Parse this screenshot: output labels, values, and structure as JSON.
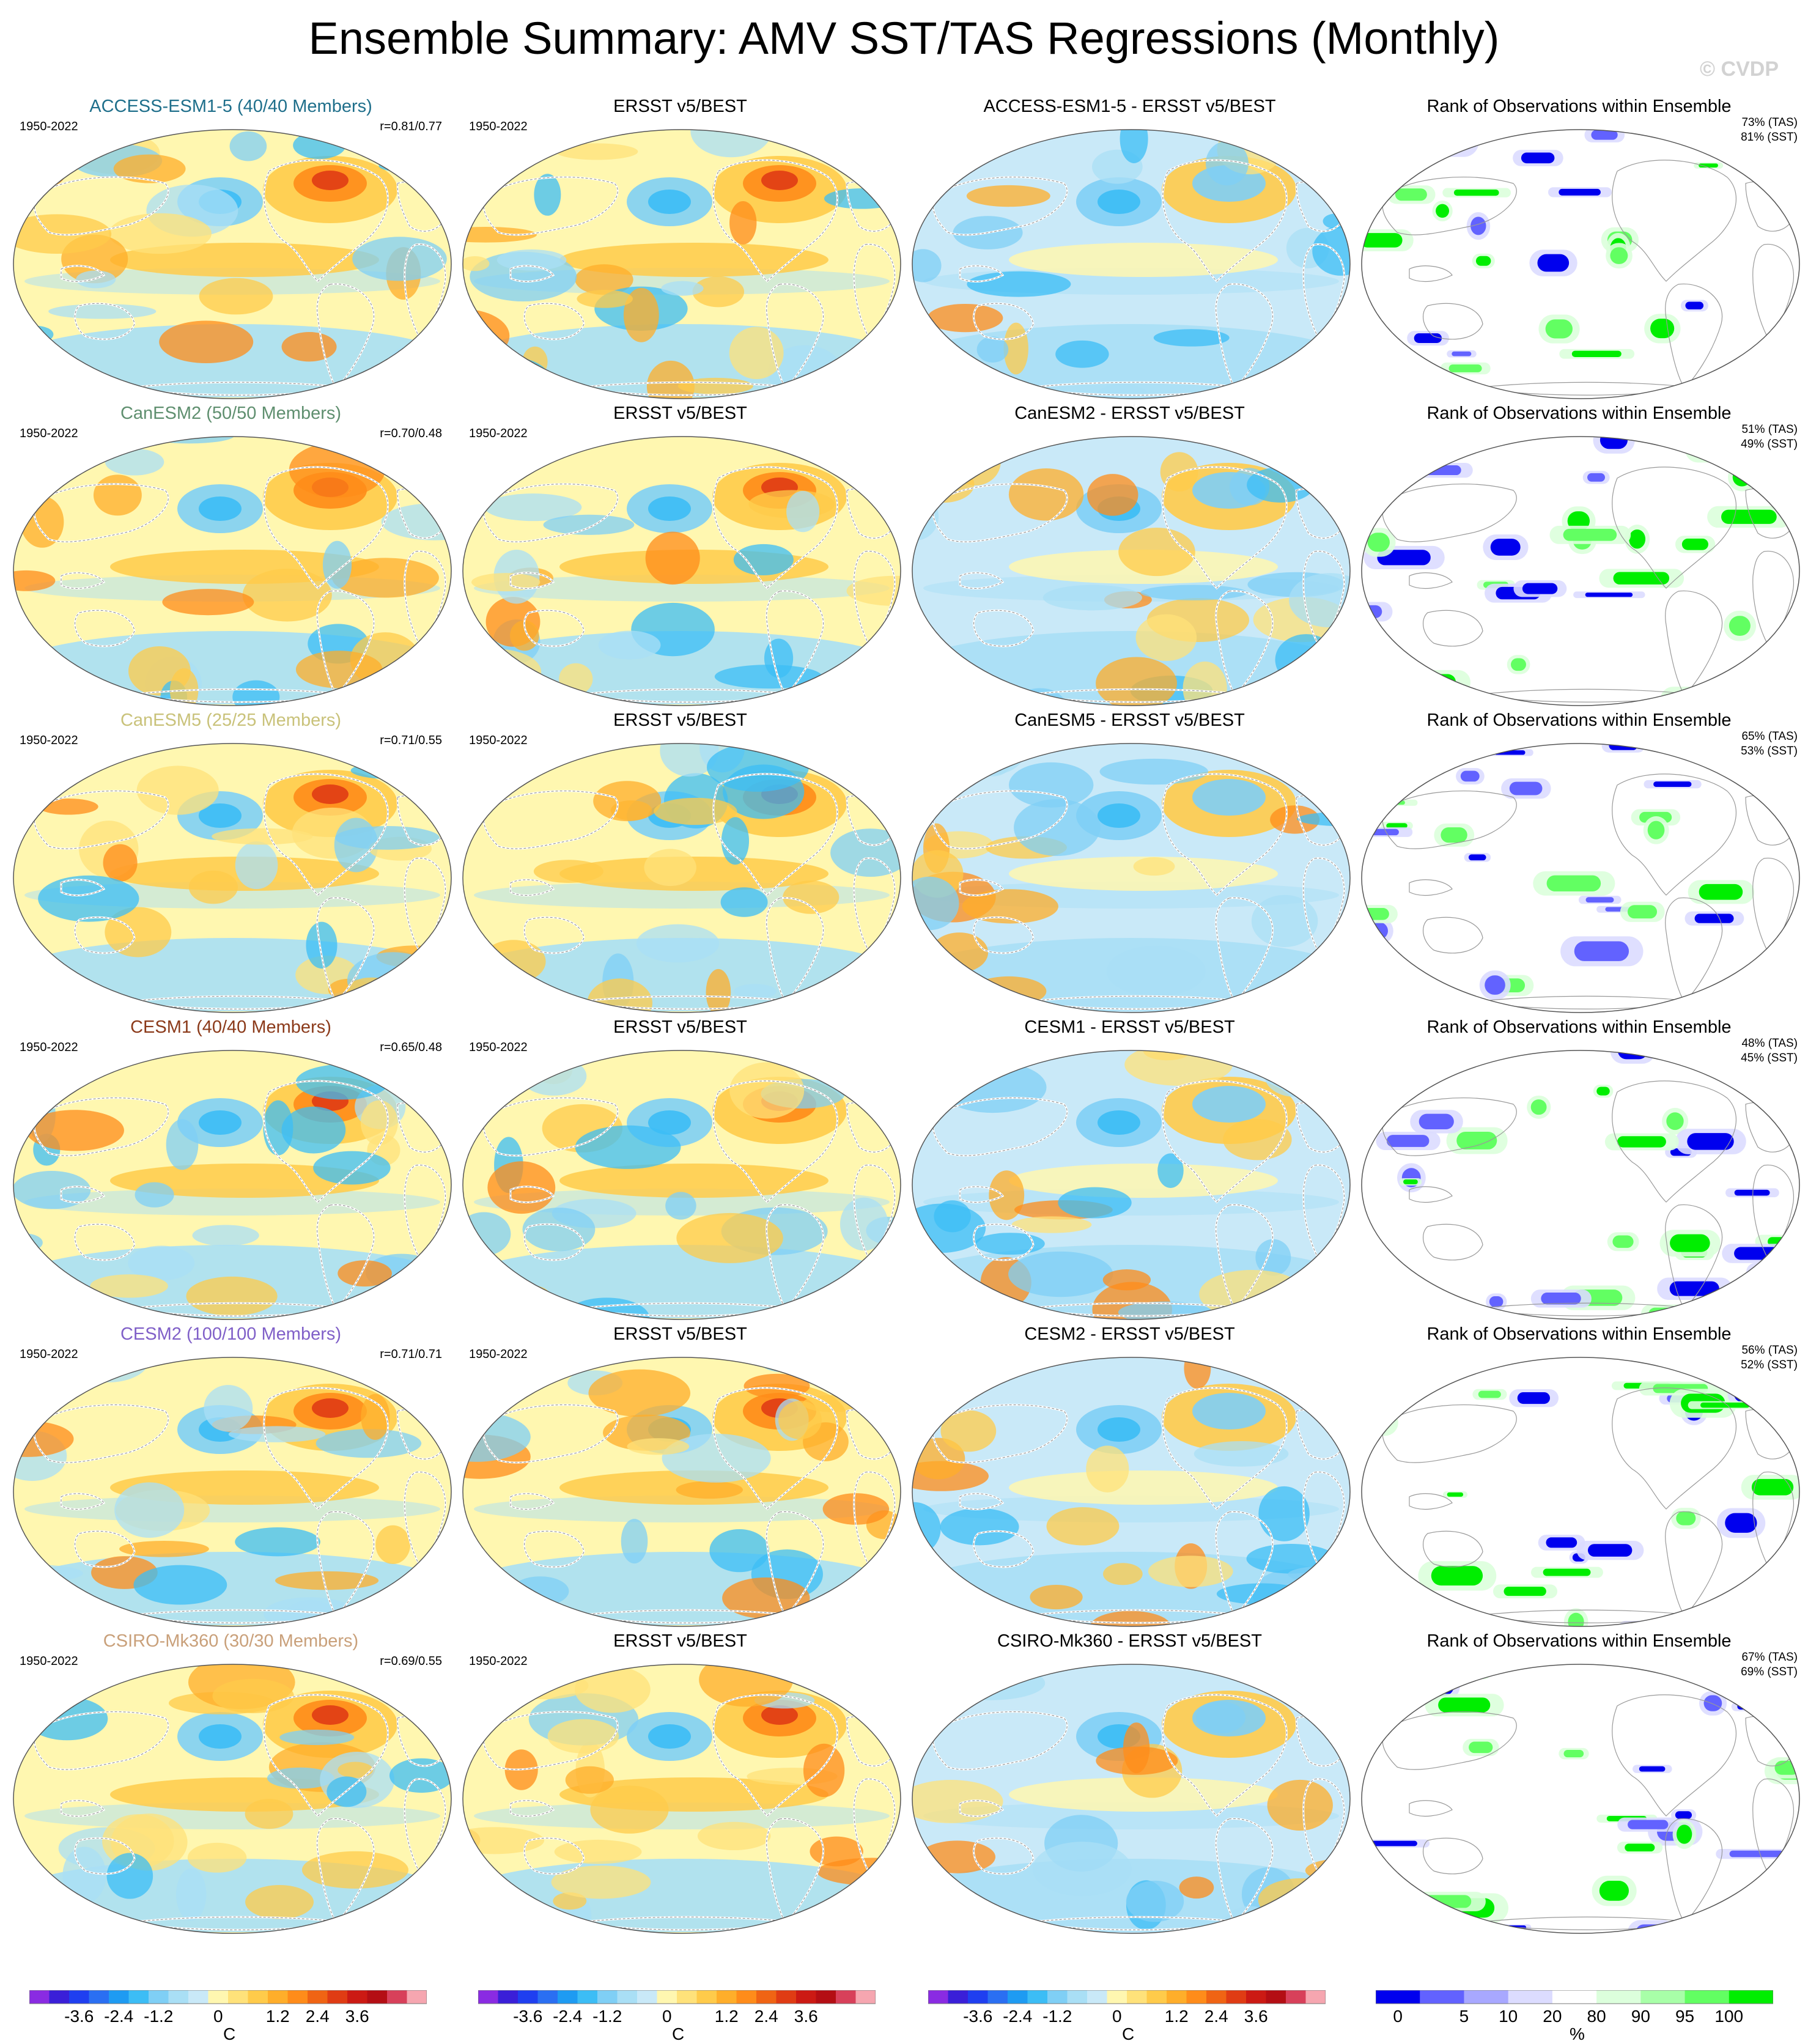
{
  "title": "Ensemble Summary: AMV SST/TAS Regressions (Monthly)",
  "watermark": "© CVDP",
  "obs_title": "ERSST v5/BEST",
  "rank_title": "Rank of Observations within Ensemble",
  "period": "1950-2022",
  "rows": [
    {
      "model": "ACCESS-ESM1-5 (40/40 Members)",
      "model_color": "#1f6f8b",
      "corr": "r=0.81/0.77",
      "diff_title": "ACCESS-ESM1-5 - ERSST v5/BEST",
      "rank_tas": "73% (TAS)",
      "rank_sst": "81% (SST)"
    },
    {
      "model": "CanESM2 (50/50 Members)",
      "model_color": "#5f8f6f",
      "corr": "r=0.70/0.48",
      "diff_title": "CanESM2 - ERSST v5/BEST",
      "rank_tas": "51% (TAS)",
      "rank_sst": "49% (SST)"
    },
    {
      "model": "CanESM5 (25/25 Members)",
      "model_color": "#c9c27a",
      "corr": "r=0.71/0.55",
      "diff_title": "CanESM5 - ERSST v5/BEST",
      "rank_tas": "65% (TAS)",
      "rank_sst": "53% (SST)"
    },
    {
      "model": "CESM1 (40/40 Members)",
      "model_color": "#8b3a1a",
      "corr": "r=0.65/0.48",
      "diff_title": "CESM1 - ERSST v5/BEST",
      "rank_tas": "48% (TAS)",
      "rank_sst": "45% (SST)"
    },
    {
      "model": "CESM2 (100/100 Members)",
      "model_color": "#8060c8",
      "corr": "r=0.71/0.71",
      "diff_title": "CESM2 - ERSST v5/BEST",
      "rank_tas": "56% (TAS)",
      "rank_sst": "52% (SST)"
    },
    {
      "model": "CSIRO-Mk360 (30/30 Members)",
      "model_color": "#c9a07a",
      "corr": "r=0.69/0.55",
      "diff_title": "CSIRO-Mk360 - ERSST v5/BEST",
      "rank_tas": "67% (TAS)",
      "rank_sst": "69% (SST)"
    }
  ],
  "temp_colorbar": {
    "unit": "C",
    "ticks": [
      "-3.6",
      "-2.4",
      "-1.2",
      "0",
      "1.2",
      "2.4",
      "3.6"
    ],
    "colors": [
      "#8a2be2",
      "#3a1fd8",
      "#1f3ff0",
      "#2a6ff2",
      "#1e9bf2",
      "#3cbdf5",
      "#7fcff5",
      "#a9dff5",
      "#c9e9f8",
      "#fff7b0",
      "#ffe27a",
      "#ffcb4a",
      "#ffae2a",
      "#ff8c1a",
      "#f06414",
      "#e03c14",
      "#cc1a14",
      "#b40e14",
      "#d8405a",
      "#f6a6b0"
    ]
  },
  "rank_colorbar": {
    "unit": "%",
    "ticks": [
      "0",
      "5",
      "10",
      "20",
      "80",
      "90",
      "95",
      "100"
    ],
    "colors": [
      "#0000ee",
      "#6262ff",
      "#a8a8ff",
      "#dcdcff",
      "#ffffff",
      "#dcffdc",
      "#a8ffa8",
      "#62ff62",
      "#00ee00"
    ]
  }
}
